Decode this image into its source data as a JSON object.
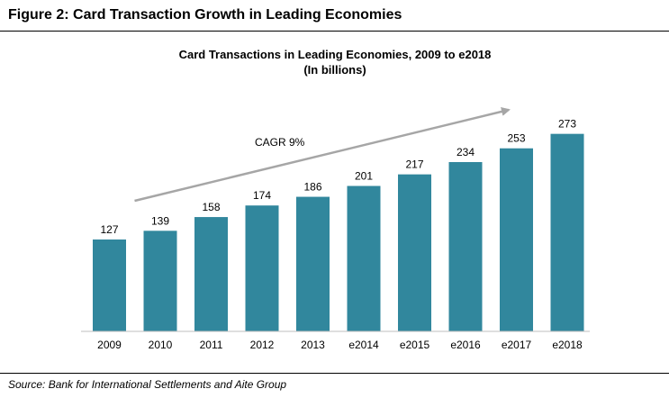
{
  "figure": {
    "title": "Figure 2: Card Transaction Growth in Leading Economies",
    "source": "Source: Bank for International Settlements and Aite Group"
  },
  "chart_data": {
    "type": "bar",
    "title": "Card Transactions in Leading Economies, 2009 to e2018",
    "subtitle": "(In billions)",
    "categories": [
      "2009",
      "2010",
      "2011",
      "2012",
      "2013",
      "e2014",
      "e2015",
      "e2016",
      "e2017",
      "e2018"
    ],
    "values": [
      127,
      139,
      158,
      174,
      186,
      201,
      217,
      234,
      253,
      273
    ],
    "ylim": [
      0,
      290
    ],
    "grid": false,
    "legend": "none",
    "annotations": [
      {
        "text": "CAGR 9%",
        "type": "trend-arrow"
      }
    ],
    "colors": {
      "bar": "#31879d",
      "arrow": "#a6a6a6",
      "axis": "#bfbfbf"
    }
  }
}
